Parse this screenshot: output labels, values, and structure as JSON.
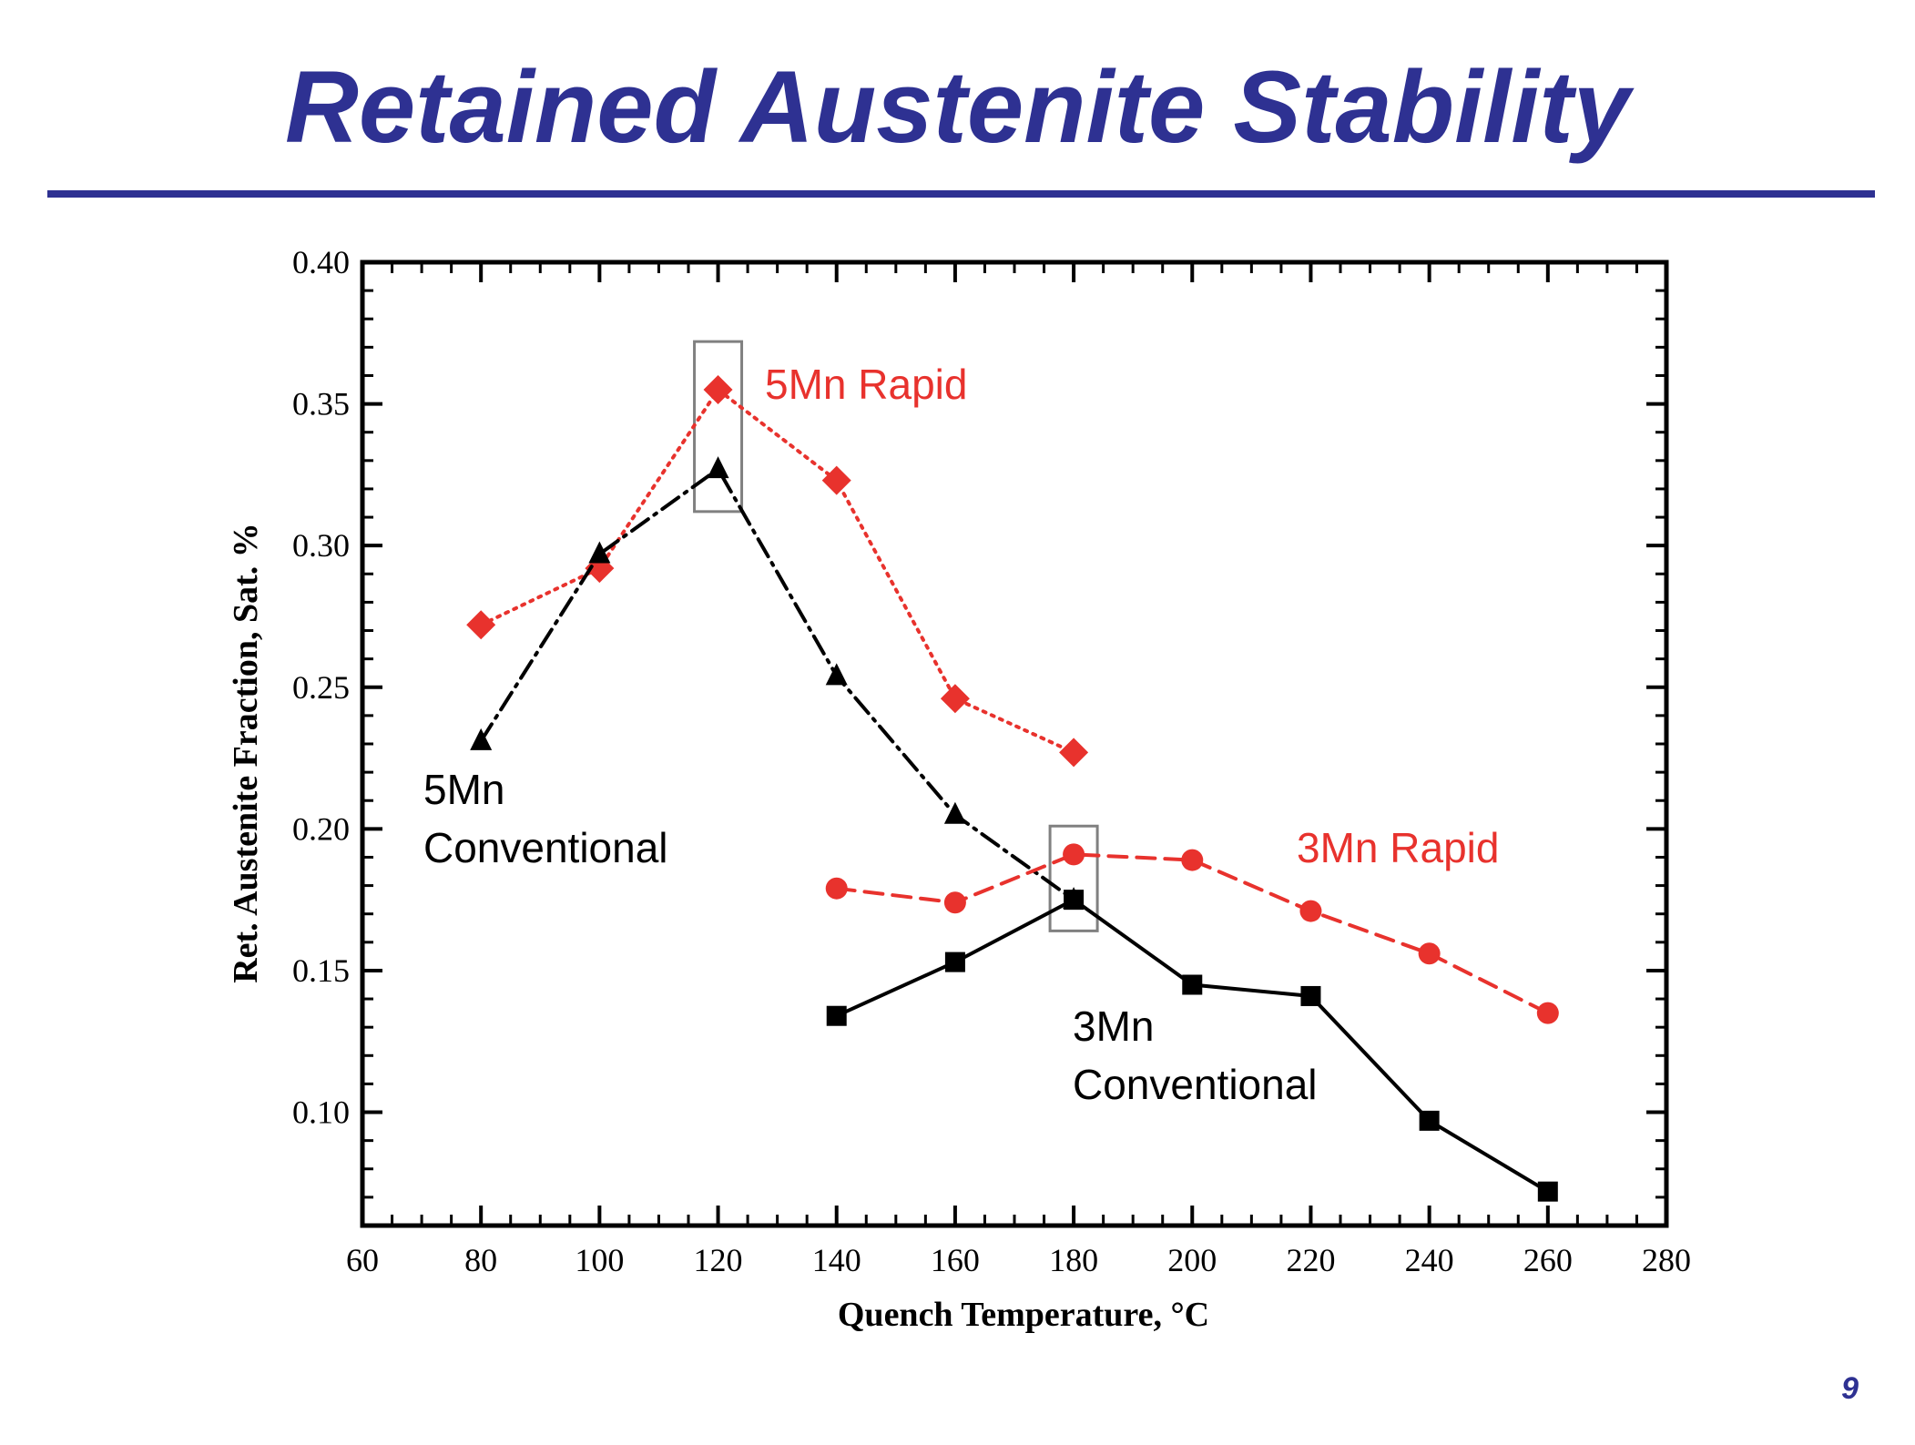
{
  "slide": {
    "title": "Retained Austenite Stability",
    "page_number": "9"
  },
  "chart_data": {
    "type": "line",
    "xlabel": "Quench Temperature, °C",
    "ylabel": "Ret. Austenite Fraction, Sat. %",
    "xlim": [
      60,
      280
    ],
    "ylim": [
      0.06,
      0.4
    ],
    "xticks": [
      "60",
      "80",
      "100",
      "120",
      "140",
      "160",
      "180",
      "200",
      "220",
      "240",
      "260",
      "280"
    ],
    "yticks": [
      "0.10",
      "0.15",
      "0.20",
      "0.25",
      "0.30",
      "0.35",
      "0.40"
    ],
    "grid": false,
    "series": [
      {
        "name": "5Mn Rapid",
        "label": "5Mn Rapid",
        "color": "#e8322d",
        "marker": "diamond",
        "line_style": "dotted",
        "x": [
          80,
          100,
          120,
          140,
          160,
          180
        ],
        "y": [
          0.272,
          0.292,
          0.355,
          0.323,
          0.246,
          0.227
        ]
      },
      {
        "name": "5Mn Conventional",
        "label_lines": [
          "5Mn",
          "Conventional"
        ],
        "color": "#000000",
        "marker": "triangle",
        "line_style": "dash-dot",
        "x": [
          80,
          100,
          120,
          140,
          160,
          180
        ],
        "y": [
          0.231,
          0.297,
          0.327,
          0.254,
          0.205,
          0.175
        ]
      },
      {
        "name": "3Mn Rapid",
        "label": "3Mn Rapid",
        "color": "#e8322d",
        "marker": "circle",
        "line_style": "dashed",
        "x": [
          140,
          160,
          180,
          200,
          220,
          240,
          260
        ],
        "y": [
          0.179,
          0.174,
          0.191,
          0.189,
          0.171,
          0.156,
          0.135
        ]
      },
      {
        "name": "3Mn Conventional",
        "label_lines": [
          "3Mn",
          "Conventional"
        ],
        "color": "#000000",
        "marker": "square",
        "line_style": "solid",
        "x": [
          140,
          160,
          180,
          200,
          220,
          240,
          260
        ],
        "y": [
          0.134,
          0.153,
          0.175,
          0.145,
          0.141,
          0.097,
          0.072
        ]
      }
    ],
    "highlight_boxes": [
      {
        "x": 120,
        "y_range": [
          0.312,
          0.372
        ]
      },
      {
        "x": 180,
        "y_range": [
          0.164,
          0.201
        ]
      }
    ]
  }
}
